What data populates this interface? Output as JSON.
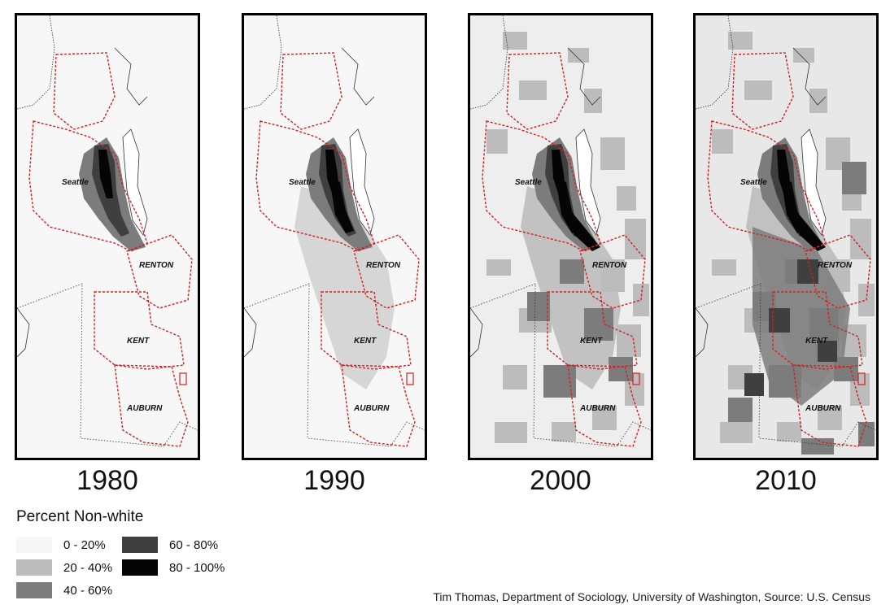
{
  "maps": [
    {
      "year": "1980",
      "level": 0
    },
    {
      "year": "1990",
      "level": 1
    },
    {
      "year": "2000",
      "level": 2
    },
    {
      "year": "2010",
      "level": 3
    }
  ],
  "city_labels": [
    "Seattle",
    "RENTON",
    "KENT",
    "AUBURN"
  ],
  "legend": {
    "title": "Percent Non-white",
    "items": [
      {
        "label": "0 - 20%",
        "color": "#f7f7f7"
      },
      {
        "label": "20 - 40%",
        "color": "#bcbcbc"
      },
      {
        "label": "40 - 60%",
        "color": "#7c7c7c"
      },
      {
        "label": "60 - 80%",
        "color": "#3f3f3f"
      },
      {
        "label": "80 - 100%",
        "color": "#050505"
      }
    ]
  },
  "credit": "Tim Thomas, Department of Sociology, University of Washington, Source: U.S. Census",
  "colors": {
    "boundary": "#d42020",
    "coast": "#333333",
    "border": "#000000"
  }
}
